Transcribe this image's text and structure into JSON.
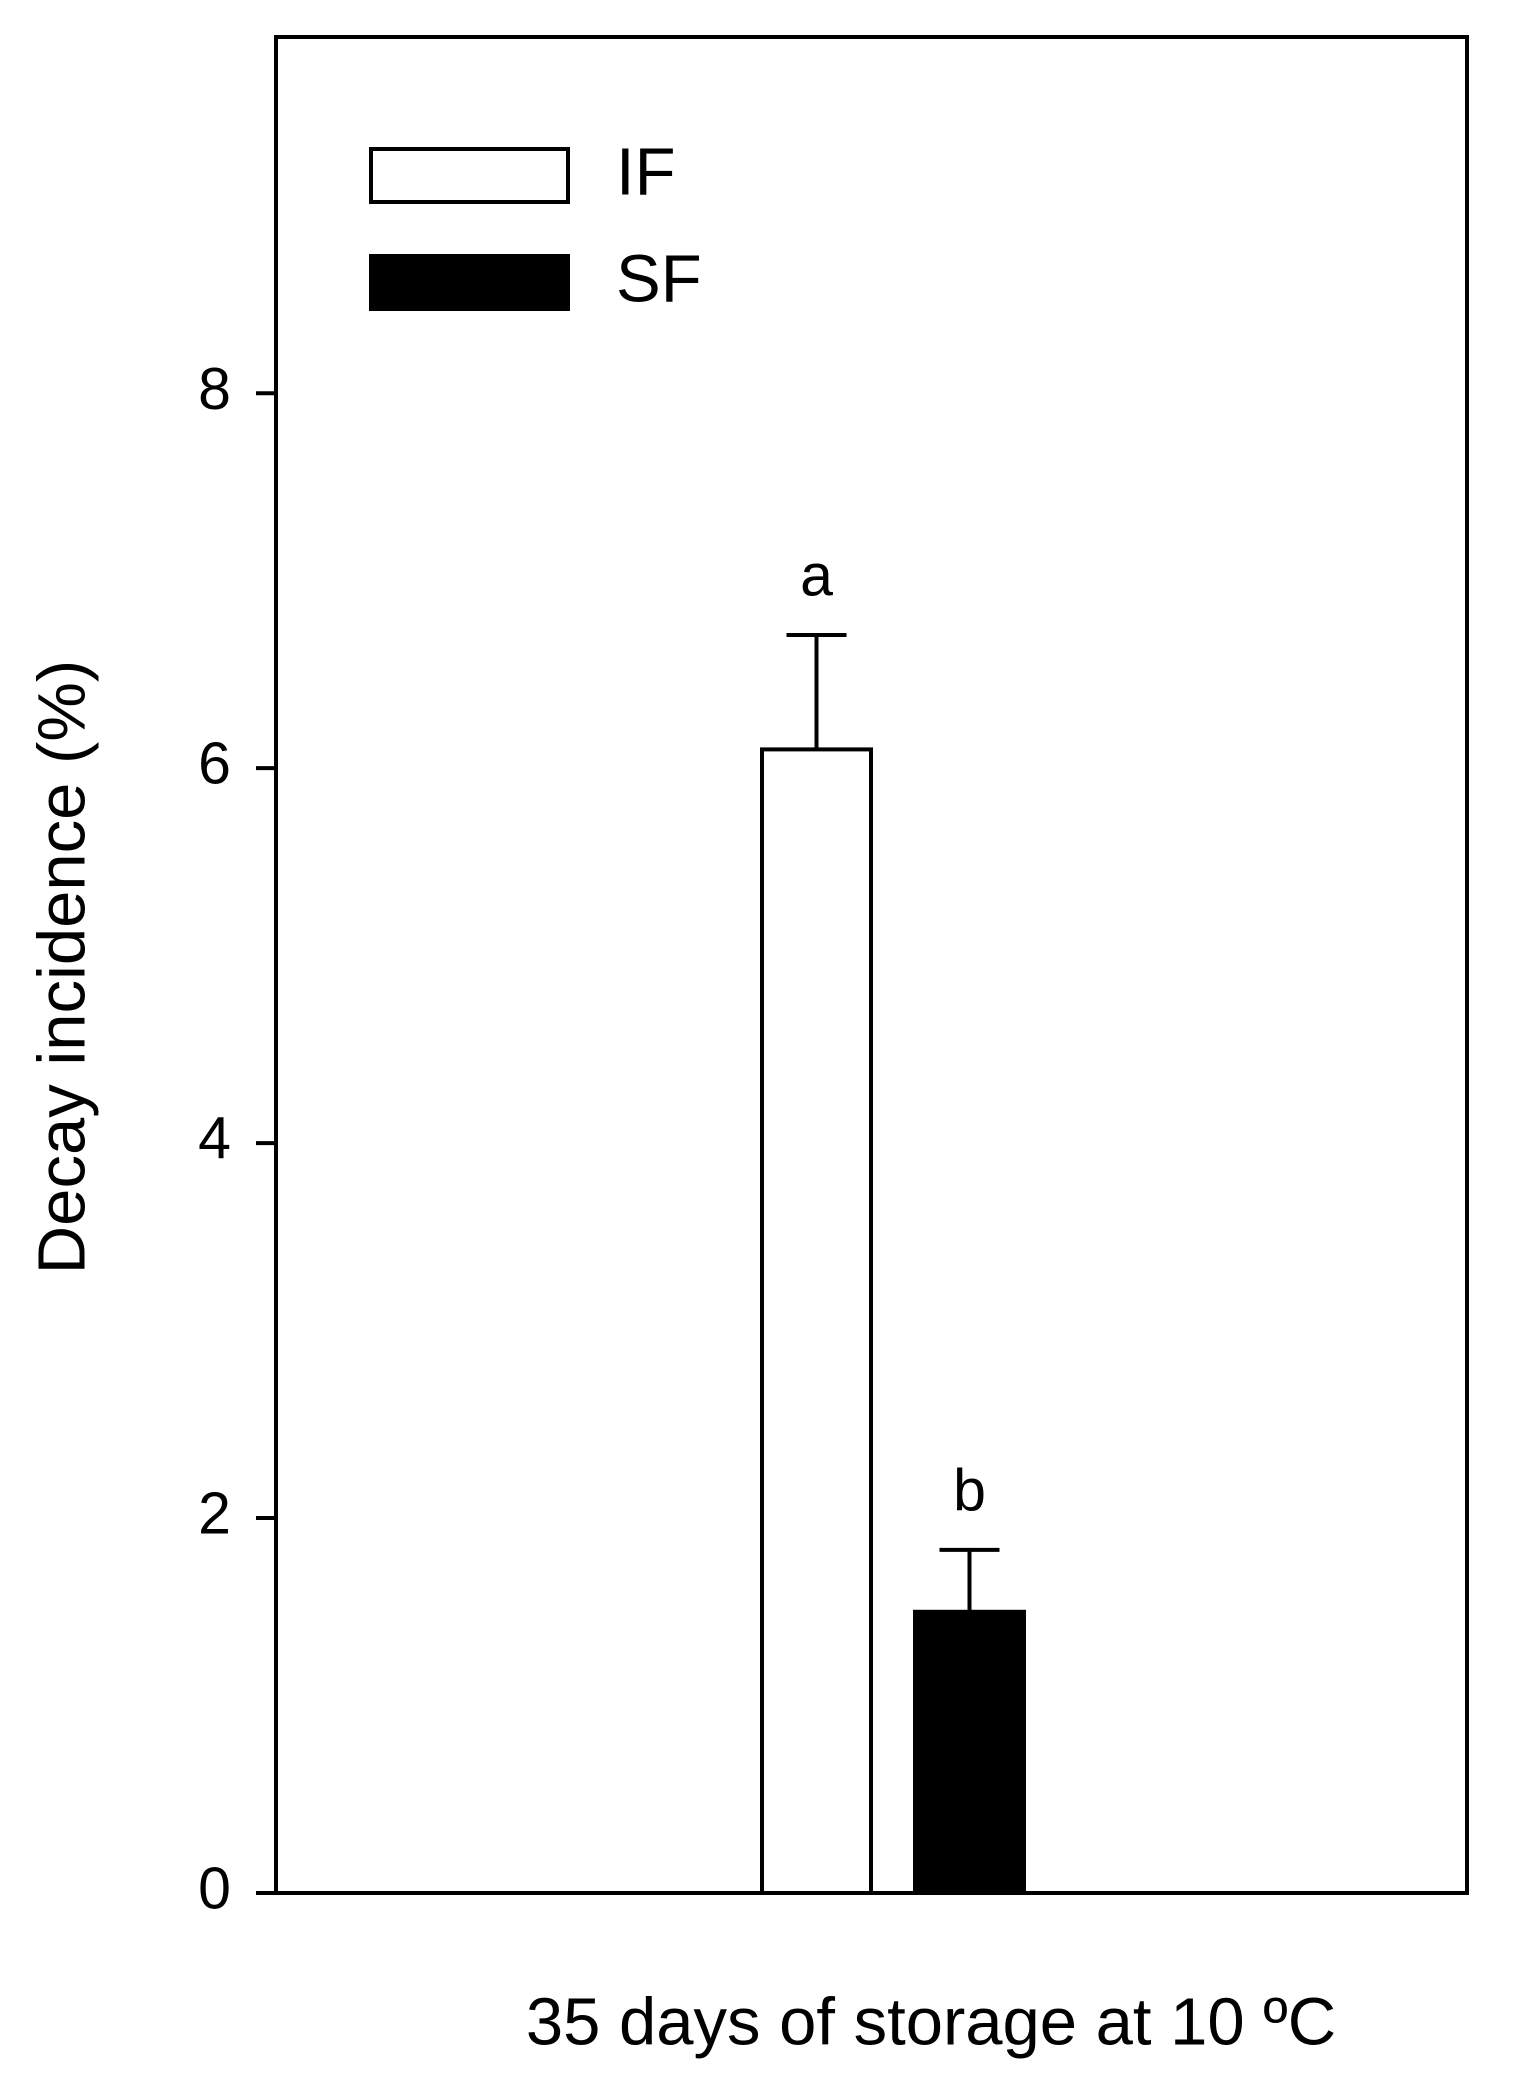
{
  "chart_data": {
    "type": "bar",
    "y_label": "Decay incidence (%)",
    "categories": [
      "35 days of storage at 10 ºC"
    ],
    "series": [
      {
        "name": "IF",
        "color": "#ffffff",
        "values": [
          6.1
        ],
        "errors": [
          0.61
        ],
        "annotation": "a"
      },
      {
        "name": "SF",
        "color": "#000000",
        "values": [
          1.5
        ],
        "errors": [
          0.33
        ],
        "annotation": "b"
      }
    ],
    "ylim": [
      0,
      9.9
    ],
    "yticks": [
      0,
      2,
      4,
      6,
      8
    ],
    "legend": "upper left",
    "grid": false
  }
}
